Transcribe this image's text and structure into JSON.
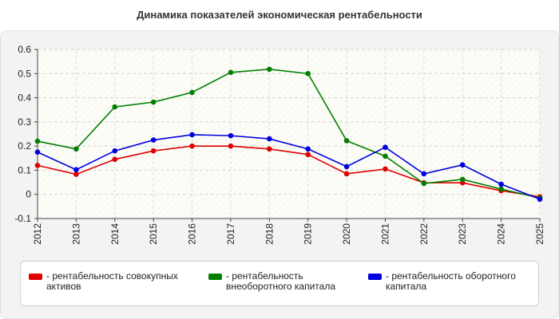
{
  "title": "Динамика показателей экономическая рентабельности",
  "chart_data": {
    "type": "line",
    "x": [
      "2012",
      "2013",
      "2014",
      "2015",
      "2016",
      "2017",
      "2018",
      "2019",
      "2020",
      "2021",
      "2022",
      "2023",
      "2024",
      "2025"
    ],
    "ylim": [
      -0.1,
      0.6
    ],
    "yticks": [
      "0.6",
      "0.5",
      "0.4",
      "0.3",
      "0.2",
      "0.1",
      "0",
      "-0.1"
    ],
    "ytick_values": [
      0.6,
      0.5,
      0.4,
      0.3,
      0.2,
      0.1,
      0,
      -0.1
    ],
    "grid": true,
    "legend_position": "bottom",
    "series": [
      {
        "name": "- рентабельность совокупных активов",
        "color": "#e00000",
        "values": [
          0.12,
          0.083,
          0.145,
          0.18,
          0.2,
          0.2,
          0.188,
          0.165,
          0.085,
          0.105,
          0.048,
          0.048,
          0.015,
          -0.01
        ]
      },
      {
        "name": "- рентабельность внеоборотного капитала",
        "color": "#008000",
        "values": [
          0.22,
          0.188,
          0.362,
          0.382,
          0.422,
          0.505,
          0.518,
          0.5,
          0.222,
          0.158,
          0.045,
          0.062,
          0.022,
          -0.015
        ]
      },
      {
        "name": "- рентабельность оборотного капитала",
        "color": "#0000e0",
        "values": [
          0.175,
          0.102,
          0.18,
          0.225,
          0.247,
          0.243,
          0.23,
          0.188,
          0.115,
          0.195,
          0.085,
          0.122,
          0.042,
          -0.02
        ]
      }
    ]
  }
}
